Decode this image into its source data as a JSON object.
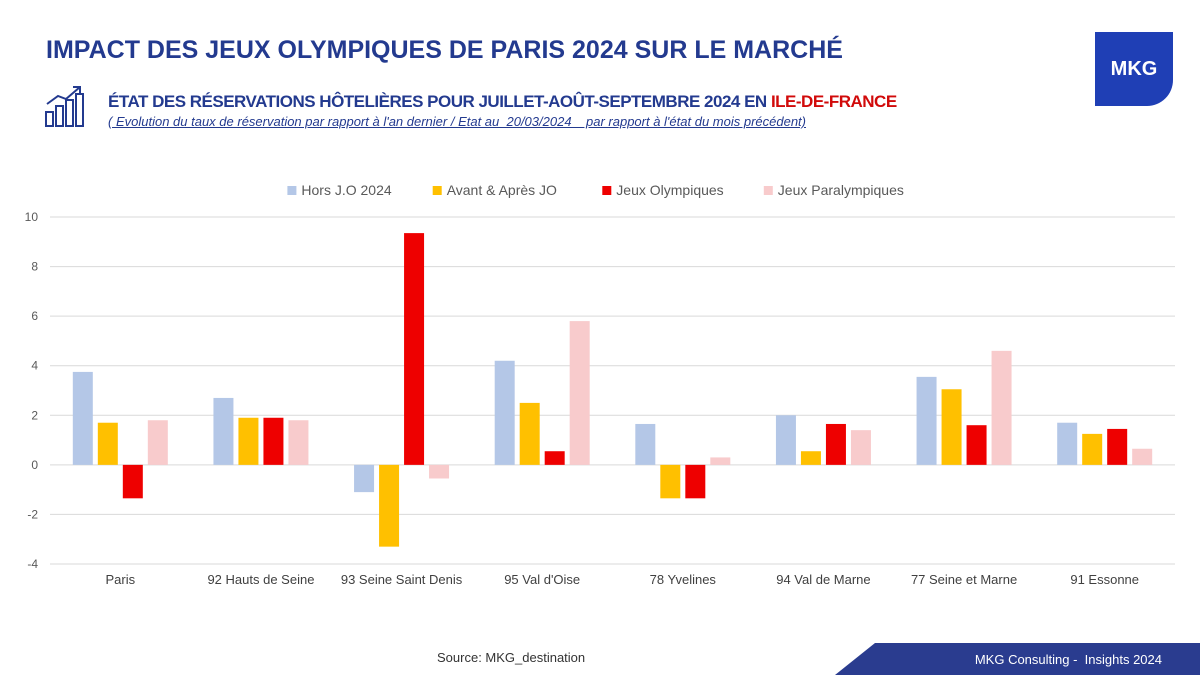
{
  "header": {
    "title": "IMPACT DES JEUX OLYMPIQUES DE PARIS 2024 SUR LE MARCHÉ",
    "logo_text": "MKG",
    "subtitle_main": "ÉTAT DES RÉSERVATIONS HÔTELIÈRES POUR JUILLET-AOÛT-SEPTEMBRE 2024 EN ",
    "subtitle_accent": "ILE-DE-FRANCE",
    "note": "( Evolution du taux de réservation par rapport à l'an dernier / Etat au  20/03/2024    par rapport à l'état du mois précédent)"
  },
  "colors": {
    "brand_blue": "#233a8f",
    "accent_red": "#d10a0a",
    "logo_blue": "#1f3fb5"
  },
  "chart_data": {
    "type": "bar",
    "title": "",
    "xlabel": "",
    "ylabel": "",
    "ylim": [
      -4,
      10
    ],
    "yticks": [
      -4,
      -2,
      0,
      2,
      4,
      6,
      8,
      10
    ],
    "grid": true,
    "legend_position": "top",
    "categories": [
      "Paris",
      "92 Hauts de Seine",
      "93 Seine Saint Denis",
      "95 Val d'Oise",
      "78 Yvelines",
      "94 Val de Marne",
      "77 Seine et Marne",
      "91 Essonne"
    ],
    "series": [
      {
        "name": "Hors J.O 2024",
        "color": "#b4c7e7",
        "values": [
          3.75,
          2.7,
          -1.1,
          4.2,
          1.65,
          2.0,
          3.55,
          1.7
        ]
      },
      {
        "name": "Avant & Après JO",
        "color": "#ffc000",
        "values": [
          1.7,
          1.9,
          -3.3,
          2.5,
          -1.35,
          0.55,
          3.05,
          1.25
        ]
      },
      {
        "name": "Jeux Olympiques",
        "color": "#ee0000",
        "values": [
          -1.35,
          1.9,
          9.35,
          0.55,
          -1.35,
          1.65,
          1.6,
          1.45
        ]
      },
      {
        "name": "Jeux Paralympiques",
        "color": "#f8cbcc",
        "values": [
          1.8,
          1.8,
          -0.55,
          5.8,
          0.3,
          1.4,
          4.6,
          0.65
        ]
      }
    ]
  },
  "footer": {
    "source": "Source: MKG_destination",
    "brand_text": "MKG Consulting -  Insights 2024"
  }
}
